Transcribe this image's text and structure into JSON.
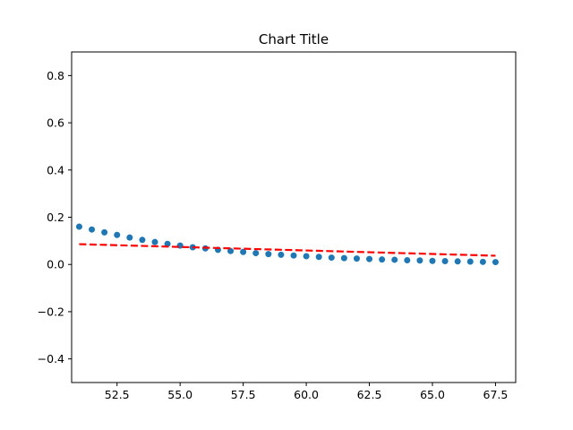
{
  "chart_data": {
    "type": "scatter",
    "title": "Chart Title",
    "xlabel": "",
    "ylabel": "",
    "xlim": [
      50.7,
      68.3
    ],
    "ylim": [
      -0.5,
      0.9
    ],
    "x_ticks": [
      52.5,
      55.0,
      57.5,
      60.0,
      62.5,
      65.0,
      67.5
    ],
    "x_tick_labels": [
      "52.5",
      "55.0",
      "57.5",
      "60.0",
      "62.5",
      "65.0",
      "67.5"
    ],
    "y_ticks": [
      -0.4,
      -0.2,
      0.0,
      0.2,
      0.4,
      0.6,
      0.8
    ],
    "y_tick_labels": [
      "−0.4",
      "−0.2",
      "0.0",
      "0.2",
      "0.4",
      "0.6",
      "0.8"
    ],
    "grid": false,
    "series": [
      {
        "kind": "points",
        "color": "#1f77b4",
        "x": [
          51.0,
          51.5,
          52.0,
          52.5,
          53.0,
          53.5,
          54.0,
          54.5,
          55.0,
          55.5,
          56.0,
          56.5,
          57.0,
          57.5,
          58.0,
          58.5,
          59.0,
          59.5,
          60.0,
          60.5,
          61.0,
          61.5,
          62.0,
          62.5,
          63.0,
          63.5,
          64.0,
          64.5,
          65.0,
          65.5,
          66.0,
          66.5,
          67.0,
          67.5
        ],
        "y": [
          0.16,
          0.148,
          0.136,
          0.125,
          0.114,
          0.104,
          0.095,
          0.087,
          0.08,
          0.073,
          0.068,
          0.062,
          0.057,
          0.053,
          0.048,
          0.044,
          0.041,
          0.038,
          0.035,
          0.032,
          0.029,
          0.027,
          0.025,
          0.023,
          0.021,
          0.02,
          0.018,
          0.017,
          0.015,
          0.014,
          0.013,
          0.012,
          0.011,
          0.01
        ]
      },
      {
        "kind": "trend-line",
        "color": "#ff0000",
        "style": "dashed",
        "x": [
          51.0,
          67.5
        ],
        "y": [
          0.086,
          0.037
        ]
      }
    ]
  }
}
